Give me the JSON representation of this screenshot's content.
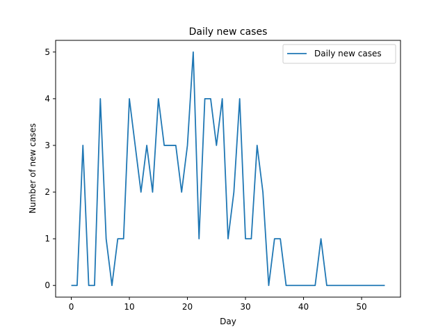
{
  "chart_data": {
    "type": "line",
    "title": "Daily new cases",
    "xlabel": "Day",
    "ylabel": "Number of new cases",
    "xlim": [
      -2.7,
      56.7
    ],
    "ylim": [
      -0.25,
      5.25
    ],
    "xticks": [
      0,
      10,
      20,
      30,
      40,
      50
    ],
    "yticks": [
      0,
      1,
      2,
      3,
      4,
      5
    ],
    "grid": false,
    "legend_position": "top-right",
    "series": [
      {
        "name": "Daily new cases",
        "color": "#1f77b4",
        "x": [
          0,
          1,
          2,
          3,
          4,
          5,
          6,
          7,
          8,
          9,
          10,
          11,
          12,
          13,
          14,
          15,
          16,
          17,
          18,
          19,
          20,
          21,
          22,
          23,
          24,
          25,
          26,
          27,
          28,
          29,
          30,
          31,
          32,
          33,
          34,
          35,
          36,
          37,
          38,
          39,
          40,
          41,
          42,
          43,
          44,
          45,
          46,
          47,
          48,
          49,
          50,
          51,
          52,
          53,
          54
        ],
        "values": [
          0,
          0,
          3,
          0,
          0,
          4,
          1,
          0,
          1,
          1,
          4,
          3,
          2,
          3,
          2,
          4,
          3,
          3,
          3,
          2,
          3,
          5,
          1,
          4,
          4,
          3,
          4,
          1,
          2,
          4,
          1,
          1,
          3,
          2,
          0,
          1,
          1,
          0,
          0,
          0,
          0,
          0,
          0,
          1,
          0,
          0,
          0,
          0,
          0,
          0,
          0,
          0,
          0,
          0,
          0
        ]
      }
    ]
  }
}
